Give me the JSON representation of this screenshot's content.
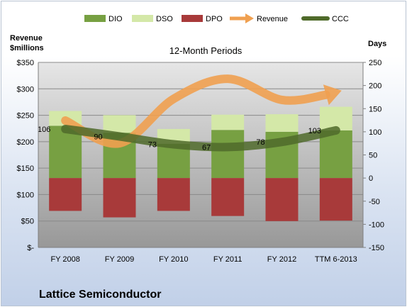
{
  "company": "Lattice Semiconductor",
  "chart_data": {
    "type": "bar",
    "title": "12-Month Periods",
    "ylabel_left": [
      "Revenue",
      "$millions"
    ],
    "ylabel_right": "Days",
    "categories": [
      "FY 2008",
      "FY 2009",
      "FY 2010",
      "FY 2011",
      "FY 2012",
      "TTM 6-2013"
    ],
    "left_axis": {
      "ticks": [
        "$-",
        "$50",
        "$100",
        "$150",
        "$200",
        "$250",
        "$300",
        "$350"
      ],
      "ylim": [
        0,
        350
      ]
    },
    "right_axis": {
      "ticks": [
        "-150",
        "-100",
        "-50",
        "0",
        "50",
        "100",
        "150",
        "200",
        "250"
      ],
      "ylim": [
        -150,
        250
      ]
    },
    "series": [
      {
        "name": "DIO",
        "type": "stacked-bar",
        "axis": "right",
        "color": "#77a042",
        "values": [
          113,
          98,
          74,
          104,
          100,
          103
        ]
      },
      {
        "name": "DSO",
        "type": "stacked-bar",
        "axis": "right",
        "color": "#d4e8a8",
        "values": [
          32,
          38,
          32,
          33,
          38,
          51
        ]
      },
      {
        "name": "DPO",
        "type": "stacked-bar",
        "axis": "right",
        "color": "#a83a3a",
        "values": [
          -71,
          -85,
          -71,
          -82,
          -93,
          -92
        ]
      },
      {
        "name": "Revenue",
        "type": "line-arrow",
        "axis": "left",
        "color": "#f0a050",
        "values": [
          240,
          197,
          281,
          319,
          279,
          294
        ]
      },
      {
        "name": "CCC",
        "type": "line",
        "axis": "right",
        "color": "#4f6a2a",
        "values": [
          106,
          90,
          73,
          67,
          78,
          103
        ]
      }
    ],
    "data_labels": [
      "106",
      "90",
      "73",
      "67",
      "78",
      "103"
    ],
    "legend_position": "top",
    "grid": true
  }
}
